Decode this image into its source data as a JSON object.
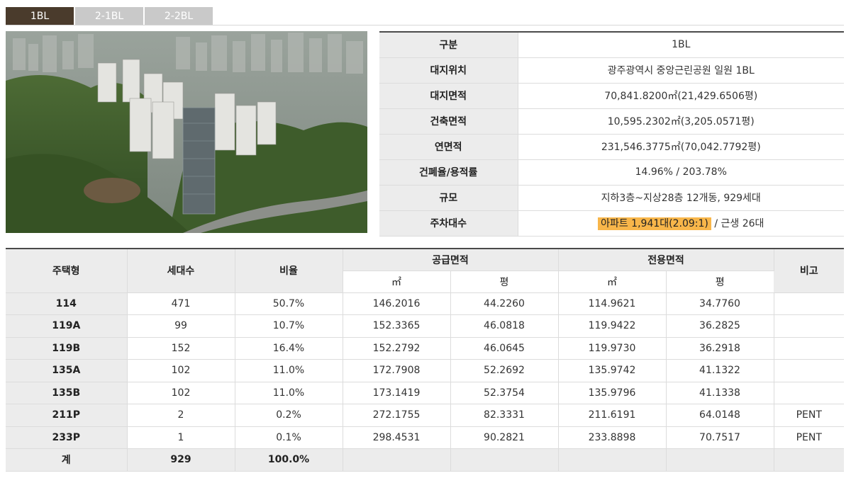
{
  "tabs": [
    {
      "label": "1BL",
      "active": true
    },
    {
      "label": "2-1BL",
      "active": false
    },
    {
      "label": "2-2BL",
      "active": false
    }
  ],
  "summary": [
    {
      "label": "구분",
      "value": "1BL"
    },
    {
      "label": "대지위치",
      "value": "광주광역시 중앙근린공원 일원 1BL"
    },
    {
      "label": "대지면적",
      "value": "70,841.8200㎡(21,429.6506평)"
    },
    {
      "label": "건축면적",
      "value": "10,595.2302㎡(3,205.0571평)"
    },
    {
      "label": "연면적",
      "value": "231,546.3775㎡(70,042.7792평)"
    },
    {
      "label": "건폐율/용적률",
      "value": "14.96% / 203.78%"
    },
    {
      "label": "규모",
      "value": "지하3층~지상28층 12개동, 929세대"
    },
    {
      "label": "주차대수",
      "value_highlight": "아파트 1,941대(2.09:1)",
      "value_rest": " / 근생 26대"
    }
  ],
  "units": {
    "headers": {
      "type": "주택형",
      "households": "세대수",
      "ratio": "비율",
      "supply": "공급면적",
      "exclusive": "전용면적",
      "note": "비고",
      "sqm": "㎡",
      "pyeong": "평"
    },
    "rows": [
      {
        "type": "114",
        "households": "471",
        "ratio": "50.7%",
        "supply_sqm": "146.2016",
        "supply_py": "44.2260",
        "excl_sqm": "114.9621",
        "excl_py": "34.7760",
        "note": ""
      },
      {
        "type": "119A",
        "households": "99",
        "ratio": "10.7%",
        "supply_sqm": "152.3365",
        "supply_py": "46.0818",
        "excl_sqm": "119.9422",
        "excl_py": "36.2825",
        "note": ""
      },
      {
        "type": "119B",
        "households": "152",
        "ratio": "16.4%",
        "supply_sqm": "152.2792",
        "supply_py": "46.0645",
        "excl_sqm": "119.9730",
        "excl_py": "36.2918",
        "note": ""
      },
      {
        "type": "135A",
        "households": "102",
        "ratio": "11.0%",
        "supply_sqm": "172.7908",
        "supply_py": "52.2692",
        "excl_sqm": "135.9742",
        "excl_py": "41.1322",
        "note": ""
      },
      {
        "type": "135B",
        "households": "102",
        "ratio": "11.0%",
        "supply_sqm": "173.1419",
        "supply_py": "52.3754",
        "excl_sqm": "135.9796",
        "excl_py": "41.1338",
        "note": ""
      },
      {
        "type": "211P",
        "households": "2",
        "ratio": "0.2%",
        "supply_sqm": "272.1755",
        "supply_py": "82.3331",
        "excl_sqm": "211.6191",
        "excl_py": "64.0148",
        "note": "PENT"
      },
      {
        "type": "233P",
        "households": "1",
        "ratio": "0.1%",
        "supply_sqm": "298.4531",
        "supply_py": "90.2821",
        "excl_sqm": "233.8898",
        "excl_py": "70.7517",
        "note": "PENT"
      }
    ],
    "total": {
      "type": "계",
      "households": "929",
      "ratio": "100.0%"
    }
  },
  "colors": {
    "tab_active": "#4a3b2c",
    "tab_inactive": "#c9c9c9",
    "header_bg": "#ececec",
    "highlight": "#f8b64a"
  }
}
